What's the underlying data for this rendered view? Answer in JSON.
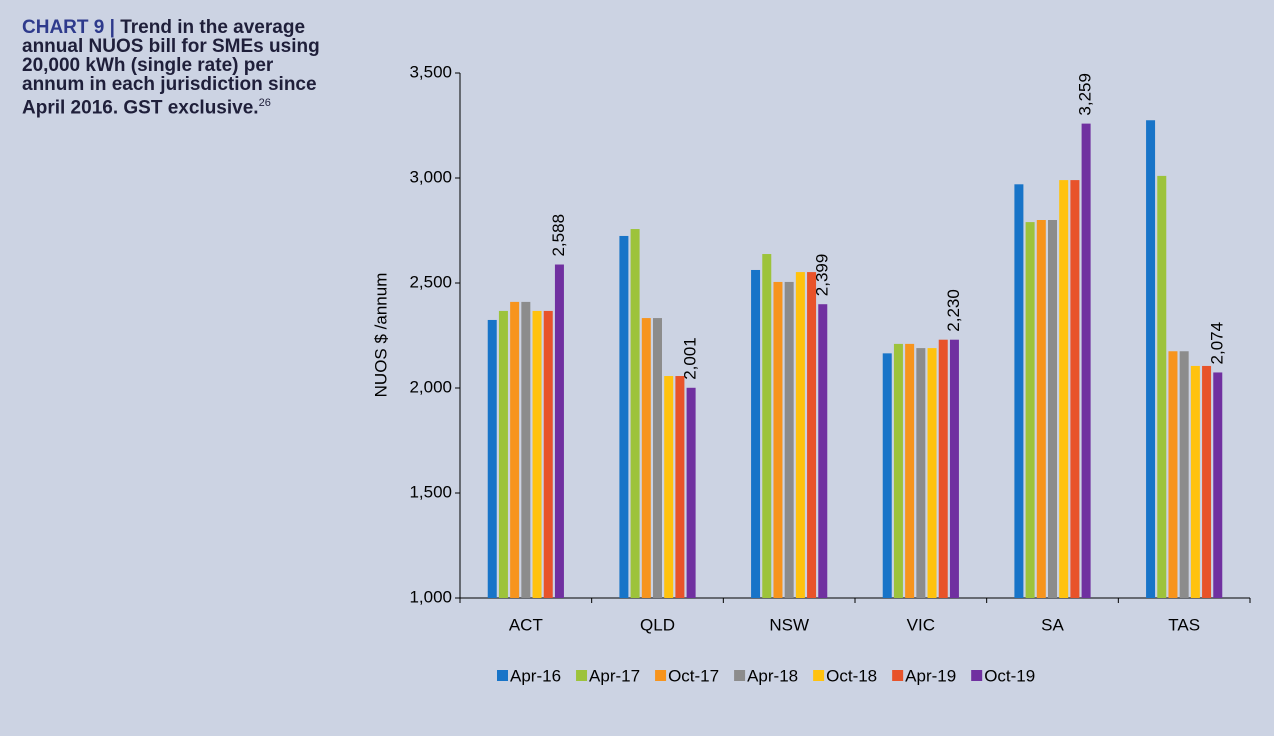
{
  "chart_data": {
    "type": "bar",
    "title_label": "CHART 9 |",
    "title": "Trend in the average annual NUOS bill for SMEs using 20,000 kWh (single rate) per annum in each jurisdiction since April 2016. GST exclusive.",
    "footnote_ref": "26",
    "y_label": "NUOS $ /annum",
    "categories": [
      "ACT",
      "QLD",
      "NSW",
      "VIC",
      "SA",
      "TAS"
    ],
    "series": [
      {
        "name": "Apr-16",
        "color": "#1874c8",
        "values": [
          2324,
          2724,
          2562,
          2165,
          2970,
          3275
        ]
      },
      {
        "name": "Apr-17",
        "color": "#9dc33b",
        "values": [
          2367,
          2757,
          2638,
          2210,
          2790,
          3010
        ]
      },
      {
        "name": "Oct-17",
        "color": "#f7941d",
        "values": [
          2410,
          2333,
          2505,
          2210,
          2800,
          2175
        ]
      },
      {
        "name": "Apr-18",
        "color": "#8c8c8c",
        "values": [
          2410,
          2333,
          2505,
          2190,
          2800,
          2175
        ]
      },
      {
        "name": "Oct-18",
        "color": "#ffc20e",
        "values": [
          2367,
          2057,
          2552,
          2190,
          2990,
          2105
        ]
      },
      {
        "name": "Apr-19",
        "color": "#e8532a",
        "values": [
          2367,
          2057,
          2552,
          2230,
          2990,
          2105
        ]
      },
      {
        "name": "Oct-19",
        "color": "#7030a0",
        "values": [
          2588,
          2001,
          2399,
          2230,
          3259,
          2074
        ],
        "value_labels": [
          "2,588",
          "2,001",
          "2,399",
          "2,230",
          "3,259",
          "2,074"
        ]
      }
    ],
    "ylim": [
      1000,
      3500
    ],
    "yticks": [
      {
        "value": 1000,
        "label": "1,000"
      },
      {
        "value": 1500,
        "label": "1,500"
      },
      {
        "value": 2000,
        "label": "2,000"
      },
      {
        "value": 2500,
        "label": "2,500"
      },
      {
        "value": 3000,
        "label": "3,000"
      },
      {
        "value": 3500,
        "label": "3,500"
      }
    ],
    "legend": "bottom"
  }
}
